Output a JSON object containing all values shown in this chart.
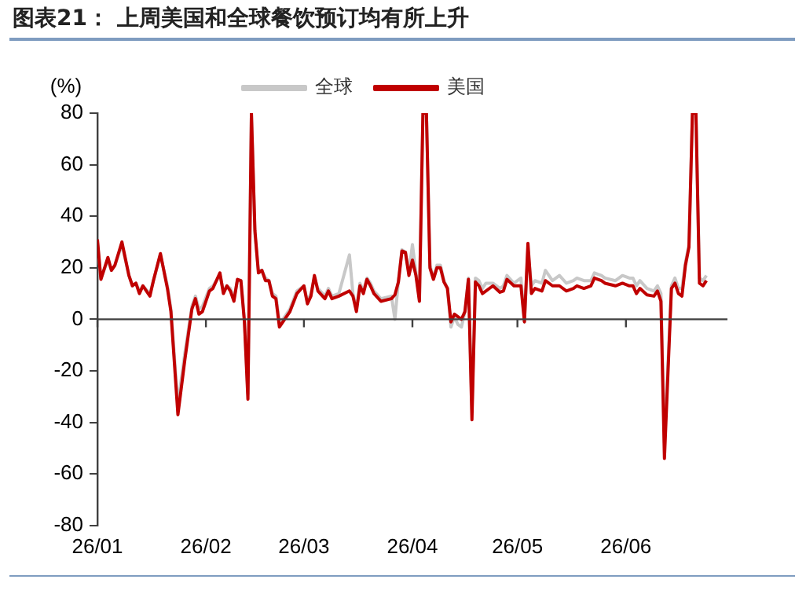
{
  "chart_data": {
    "type": "line",
    "title": "图表21：  上周美国和全球餐饮预订均有所上升",
    "ylabel": "(%)",
    "x": [
      "--01-01",
      "--01-02",
      "--01-04",
      "--01-05",
      "--01-06",
      "--01-08",
      "--01-10",
      "--01-11",
      "--01-12",
      "--01-13",
      "--01-14",
      "--01-16",
      "--01-17",
      "--01-19",
      "--01-21",
      "--01-22",
      "--01-24",
      "--01-26",
      "--01-28",
      "--01-29",
      "--01-30",
      "--01-31",
      "--02-02",
      "--02-03",
      "--02-05",
      "--02-06",
      "--02-07",
      "--02-08",
      "--02-09",
      "--02-10",
      "--02-11",
      "--02-12",
      "--02-13",
      "--02-14",
      "--02-15",
      "--02-16",
      "--02-17",
      "--02-18",
      "--02-19",
      "--02-20",
      "--02-21",
      "--02-22",
      "--02-23",
      "--02-25",
      "--02-27",
      "--03-01",
      "--03-02",
      "--03-03",
      "--03-04",
      "--03-05",
      "--03-07",
      "--03-08",
      "--03-09",
      "--03-11",
      "--03-14",
      "--03-15",
      "--03-16",
      "--03-17",
      "--03-18",
      "--03-19",
      "--03-20",
      "--03-21",
      "--03-23",
      "--03-26",
      "--03-27",
      "--03-28",
      "--03-29",
      "--03-30",
      "--03-31",
      "--04-01",
      "--04-02",
      "--04-03",
      "--04-04",
      "--04-05",
      "--04-06",
      "--04-07",
      "--04-08",
      "--04-09",
      "--04-10",
      "--04-11",
      "--04-12",
      "--04-13",
      "--04-14",
      "--04-15",
      "--04-16",
      "--04-17",
      "--04-18",
      "--04-19",
      "--04-20",
      "--04-21",
      "--04-22",
      "--04-24",
      "--04-26",
      "--04-27",
      "--04-28",
      "--04-30",
      "--05-02",
      "--05-03",
      "--05-04",
      "--05-05",
      "--05-06",
      "--05-08",
      "--05-09",
      "--05-11",
      "--05-13",
      "--05-15",
      "--05-17",
      "--05-18",
      "--05-20",
      "--05-22",
      "--05-23",
      "--05-25",
      "--05-26",
      "--05-29",
      "--05-31",
      "--06-02",
      "--06-03",
      "--06-04",
      "--06-05",
      "--06-07",
      "--06-09",
      "--06-10",
      "--06-11",
      "--06-12",
      "--06-14",
      "--06-15",
      "--06-16",
      "--06-17",
      "--06-18",
      "--06-19",
      "--06-20",
      "--06-21",
      "--06-22",
      "--06-23",
      "--06-24"
    ],
    "series": [
      {
        "name": "全球",
        "color": "#c8c8c8",
        "values": [
          30,
          16,
          23,
          19,
          21,
          29,
          17,
          13,
          14,
          11,
          13,
          10,
          15,
          25,
          13,
          4,
          -33,
          -13,
          5,
          9,
          4,
          5,
          12,
          13,
          17,
          11,
          13,
          12,
          8,
          15,
          15,
          0,
          -29,
          80,
          33,
          19,
          19,
          16,
          15,
          10,
          9,
          -1,
          0,
          4,
          11,
          13,
          7,
          10,
          16,
          12,
          9,
          12,
          9,
          10,
          25,
          10,
          4,
          14,
          11,
          16,
          14,
          11,
          8,
          9,
          0,
          15,
          27,
          26,
          18,
          29,
          18,
          8,
          80,
          80,
          21,
          16,
          21,
          21,
          15,
          12,
          -3,
          1,
          -2,
          -3,
          3,
          16,
          -35,
          16,
          15,
          12,
          14,
          14,
          12,
          13,
          17,
          14,
          16,
          -1,
          27,
          13,
          15,
          14,
          19,
          15,
          17,
          14,
          15,
          16,
          15,
          15,
          18,
          17,
          16,
          15,
          17,
          16,
          16,
          13,
          15,
          12,
          11,
          13,
          10,
          -48,
          13,
          16,
          12,
          12,
          22,
          29,
          80,
          80,
          16,
          15,
          17
        ]
      },
      {
        "name": "美国",
        "color": "#c00000",
        "values": [
          31,
          15.5,
          24,
          19,
          21,
          30,
          17,
          13,
          14,
          10,
          13,
          9,
          15,
          25.5,
          12,
          3,
          -37,
          -15.5,
          4,
          8,
          2,
          3,
          11,
          12,
          18,
          10,
          13,
          11,
          7,
          15.5,
          15,
          -1,
          -31,
          80,
          34.5,
          18,
          19,
          15,
          15,
          9,
          8,
          -3,
          -1,
          3,
          10,
          13,
          6,
          9,
          17,
          11,
          8,
          11,
          8,
          9,
          11,
          9,
          3,
          13,
          10,
          15.5,
          13,
          10,
          7,
          8,
          9.5,
          14.5,
          26.5,
          26,
          17,
          23,
          17,
          7,
          80,
          80,
          20,
          15.5,
          20,
          20,
          14.5,
          12,
          -1,
          2,
          1,
          0,
          3,
          15.5,
          -39,
          14.5,
          13,
          10,
          11,
          13,
          10.5,
          11,
          15.5,
          13,
          13,
          -1,
          29.5,
          10,
          12,
          11,
          15,
          13,
          13,
          11,
          12,
          13,
          12,
          13,
          16,
          15,
          14,
          13,
          14,
          13,
          13,
          10,
          12,
          9.5,
          9,
          11,
          7,
          -54,
          12,
          14,
          10,
          9,
          21,
          28,
          80,
          80,
          14,
          13,
          15
        ]
      }
    ],
    "xlim": [
      "--01-01",
      "--06-30"
    ],
    "xticks": [
      {
        "value": "--01-01",
        "label": "26/01"
      },
      {
        "value": "--02-01",
        "label": "26/02"
      },
      {
        "value": "--03-01",
        "label": "26/03"
      },
      {
        "value": "--04-01",
        "label": "26/04"
      },
      {
        "value": "--05-01",
        "label": "26/05"
      },
      {
        "value": "--06-01",
        "label": "26/06"
      }
    ],
    "ylim": [
      -80,
      80
    ],
    "yticks": [
      -80,
      -60,
      -40,
      -20,
      0,
      20,
      40,
      60,
      80
    ],
    "legend": "top",
    "marker": "none",
    "line_style": "solid"
  }
}
